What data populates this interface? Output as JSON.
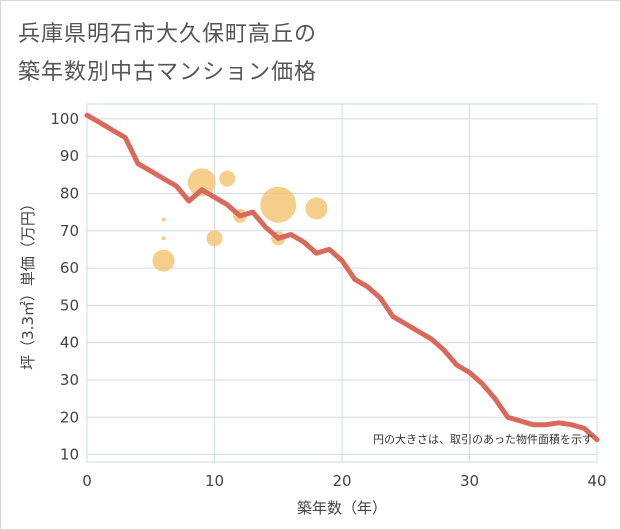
{
  "title_line1": "兵庫県明石市大久保町高丘の",
  "title_line2": "築年数別中古マンション価格",
  "chart_data": {
    "type": "line",
    "xlabel": "築年数（年）",
    "ylabel": "坪（3.3㎡）単価（万円）",
    "xlim": [
      0,
      40
    ],
    "ylim": [
      8,
      104
    ],
    "xticks": [
      0,
      10,
      20,
      30,
      40
    ],
    "yticks": [
      10,
      20,
      30,
      40,
      50,
      60,
      70,
      80,
      90,
      100
    ],
    "grid": true,
    "line_color": "#d9695a",
    "bubble_color": "#f3c677",
    "note": "円の大きさは、取引のあった物件面積を示す",
    "series": [
      {
        "x": [
          0,
          1,
          2,
          3,
          4,
          5,
          6,
          7,
          8,
          9,
          10,
          11,
          12,
          13,
          14,
          15,
          16,
          17,
          18,
          19,
          20,
          21,
          22,
          23,
          24,
          25,
          26,
          27,
          28,
          29,
          30,
          31,
          32,
          33,
          34,
          35,
          36,
          37,
          38,
          39,
          40
        ],
        "y": [
          101,
          99,
          97,
          95,
          88,
          86,
          84,
          82,
          78,
          81,
          79,
          77,
          74,
          75,
          71,
          68,
          69,
          67,
          64,
          65,
          62,
          57,
          55,
          52,
          47,
          45,
          43,
          41,
          38,
          34,
          32,
          29,
          25,
          20,
          19,
          18,
          18,
          18.5,
          18,
          17,
          14
        ]
      }
    ],
    "bubbles": [
      {
        "x": 6,
        "y": 73,
        "size": 2
      },
      {
        "x": 6,
        "y": 68,
        "size": 2
      },
      {
        "x": 6,
        "y": 62,
        "size": 11
      },
      {
        "x": 9,
        "y": 83,
        "size": 14
      },
      {
        "x": 10,
        "y": 68,
        "size": 8
      },
      {
        "x": 11,
        "y": 84,
        "size": 8
      },
      {
        "x": 12,
        "y": 74,
        "size": 7
      },
      {
        "x": 15,
        "y": 77,
        "size": 18
      },
      {
        "x": 15,
        "y": 68,
        "size": 7
      },
      {
        "x": 18,
        "y": 76,
        "size": 11
      }
    ]
  }
}
